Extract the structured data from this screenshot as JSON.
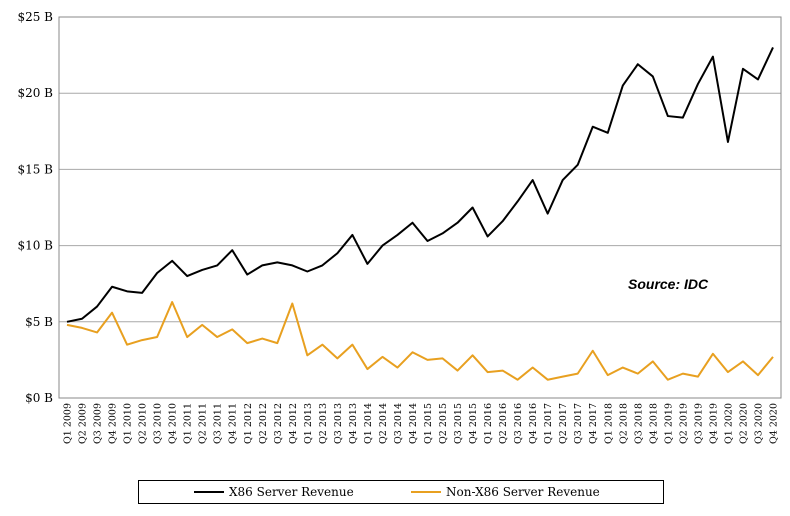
{
  "chart_data": {
    "type": "line",
    "source_note": "Source: IDC",
    "y_ticks": [
      "$0 B",
      "$5 B",
      "$10 B",
      "$15 B",
      "$20 B",
      "$25 B"
    ],
    "ylim": [
      0,
      25
    ],
    "grid": true,
    "legend_position": "bottom",
    "categories": [
      "Q1 2009",
      "Q2 2009",
      "Q3 2009",
      "Q4 2009",
      "Q1 2010",
      "Q2 2010",
      "Q3 2010",
      "Q4 2010",
      "Q1 2011",
      "Q2 2011",
      "Q3 2011",
      "Q4 2011",
      "Q1 2012",
      "Q2 2012",
      "Q3 2012",
      "Q4 2012",
      "Q1 2013",
      "Q2 2013",
      "Q3 2013",
      "Q4 2013",
      "Q1 2014",
      "Q2 2014",
      "Q3 2014",
      "Q4 2014",
      "Q1 2015",
      "Q2 2015",
      "Q3 2015",
      "Q4 2015",
      "Q1 2016",
      "Q2 2016",
      "Q3 2016",
      "Q4 2016",
      "Q1 2017",
      "Q2 2017",
      "Q3 2017",
      "Q4 2017",
      "Q1 2018",
      "Q2 2018",
      "Q3 2018",
      "Q4 2018",
      "Q1 2019",
      "Q2 2019",
      "Q3 2019",
      "Q4 2019",
      "Q1 2020",
      "Q2 2020",
      "Q3 2020",
      "Q4 2020"
    ],
    "series": [
      {
        "name": "X86 Server Revenue",
        "color": "#000000",
        "values": [
          5.0,
          5.2,
          6.0,
          7.3,
          7.0,
          6.9,
          8.2,
          9.0,
          8.0,
          8.4,
          8.7,
          9.7,
          8.1,
          8.7,
          8.9,
          8.7,
          8.3,
          8.7,
          9.5,
          10.7,
          8.8,
          10.0,
          10.7,
          11.5,
          10.3,
          10.8,
          11.5,
          12.5,
          10.6,
          11.6,
          12.9,
          14.3,
          12.1,
          14.3,
          15.3,
          17.8,
          17.4,
          20.5,
          21.9,
          21.1,
          18.5,
          18.4,
          20.6,
          22.4,
          16.8,
          21.6,
          20.9,
          23.0
        ]
      },
      {
        "name": "Non-X86 Server Revenue",
        "color": "#E8A020",
        "values": [
          4.8,
          4.6,
          4.3,
          5.6,
          3.5,
          3.8,
          4.0,
          6.3,
          4.0,
          4.8,
          4.0,
          4.5,
          3.6,
          3.9,
          3.6,
          6.2,
          2.8,
          3.5,
          2.6,
          3.5,
          1.9,
          2.7,
          2.0,
          3.0,
          2.5,
          2.6,
          1.8,
          2.8,
          1.7,
          1.8,
          1.2,
          2.0,
          1.2,
          1.4,
          1.6,
          3.1,
          1.5,
          2.0,
          1.6,
          2.4,
          1.2,
          1.6,
          1.4,
          2.9,
          1.7,
          2.4,
          1.5,
          2.7
        ]
      }
    ]
  }
}
